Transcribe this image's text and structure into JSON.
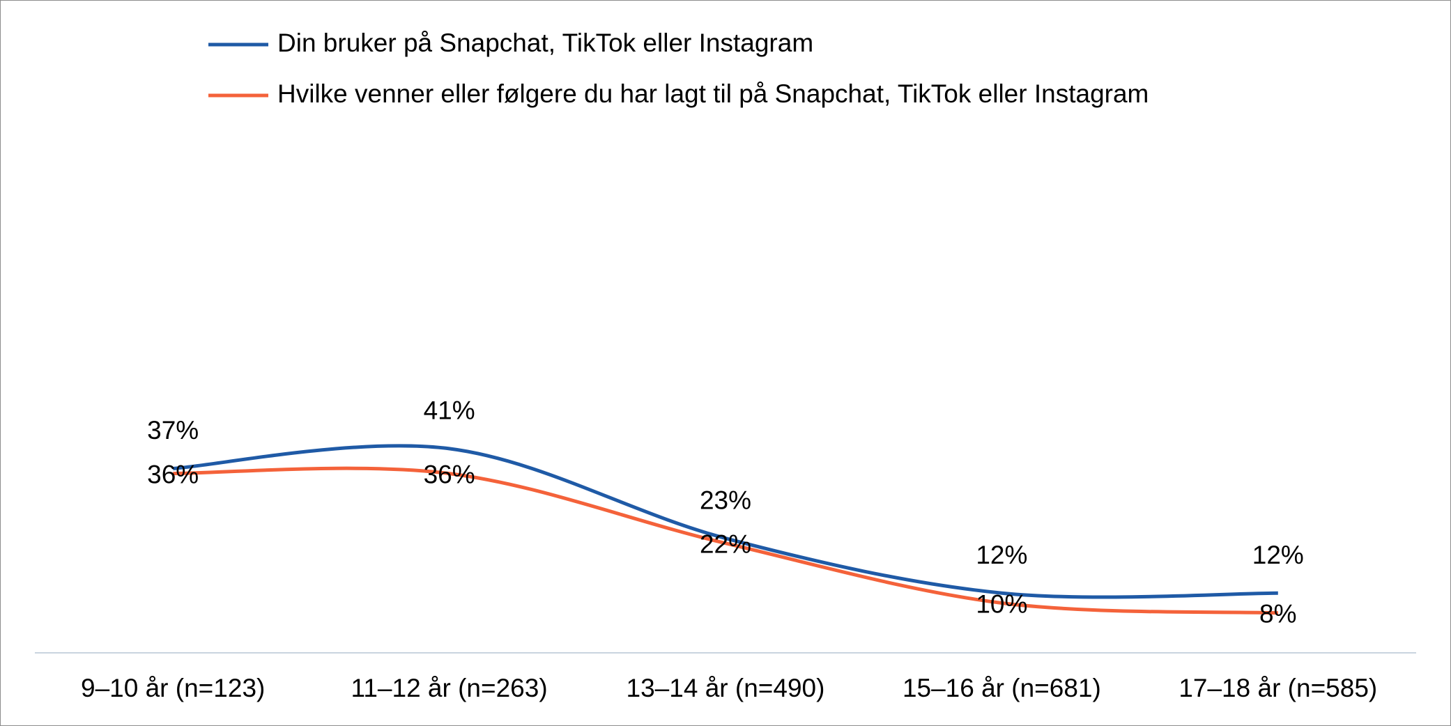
{
  "chart_data": {
    "type": "line",
    "categories": [
      "9–10 år (n=123)",
      "11–12 år (n=263)",
      "13–14 år (n=490)",
      "15–16 år (n=681)",
      "17–18 år (n=585)"
    ],
    "series": [
      {
        "name": "Din bruker på Snapchat, TikTok eller Instagram",
        "color": "#1f5aa6",
        "values": [
          37,
          41,
          23,
          12,
          12
        ],
        "value_labels": [
          "37%",
          "41%",
          "23%",
          "12%",
          "12%"
        ]
      },
      {
        "name": "Hvilke venner eller følgere du har lagt til på Snapchat, TikTok eller Instagram",
        "color": "#f4623a",
        "values": [
          36,
          36,
          22,
          10,
          8
        ],
        "value_labels": [
          "36%",
          "36%",
          "22%",
          "10%",
          "8%"
        ]
      }
    ],
    "ylim": [
      0,
      100
    ],
    "smooth": true,
    "legend": "top"
  }
}
